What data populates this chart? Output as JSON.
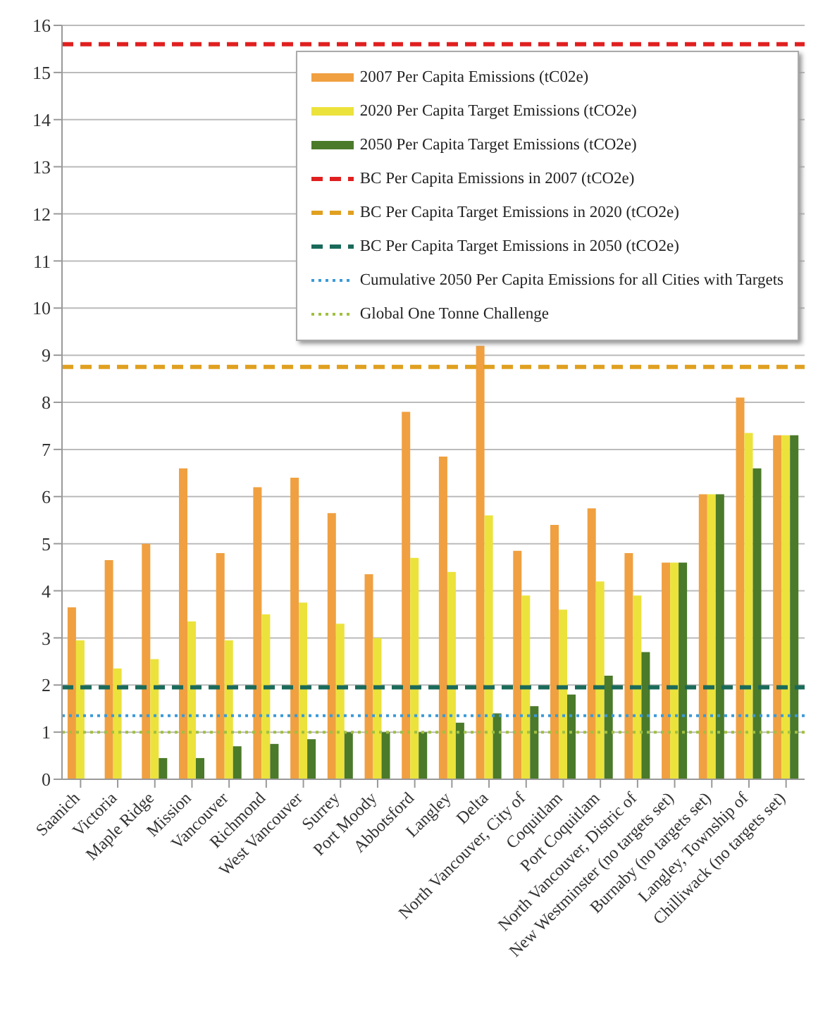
{
  "chart_data": {
    "type": "bar",
    "categories": [
      "Saanich",
      "Victoria",
      "Maple Ridge",
      "Mission",
      "Vancouver",
      "Richmond",
      "West Vancouver",
      "Surrey",
      "Port Moody",
      "Abbotsford",
      "Langley",
      "Delta",
      "North Vancouver, City of",
      "Coquitlam",
      "Port Coquitlam",
      "North Vancouver, Distric of",
      "New Westminster (no targets set)",
      "Burnaby (no targets set)",
      "Langley, Township of",
      "Chilliwack (no targets set)"
    ],
    "series": [
      {
        "name": "2007 Per Capita Emissions (tC02e)",
        "color": "#f0a040",
        "values": [
          3.65,
          4.65,
          5.0,
          6.6,
          4.8,
          6.2,
          6.4,
          5.65,
          4.35,
          7.8,
          6.85,
          9.2,
          4.85,
          5.4,
          5.75,
          4.8,
          4.6,
          6.05,
          8.1,
          7.3
        ]
      },
      {
        "name": "2020 Per Capita Target Emissions (tCO2e)",
        "color": "#ece23c",
        "values": [
          2.95,
          2.35,
          2.55,
          3.35,
          2.95,
          3.5,
          3.75,
          3.3,
          3.0,
          4.7,
          4.4,
          5.6,
          3.9,
          3.6,
          4.2,
          3.9,
          4.6,
          6.05,
          7.35,
          7.3
        ]
      },
      {
        "name": "2050 Per Capita Target Emissions (tCO2e)",
        "color": "#4a7a2a",
        "values": [
          null,
          null,
          0.45,
          0.45,
          0.7,
          0.75,
          0.85,
          1.0,
          1.0,
          1.0,
          1.2,
          1.4,
          1.55,
          1.8,
          2.2,
          2.7,
          4.6,
          6.05,
          6.6,
          7.3
        ]
      }
    ],
    "ref_lines": [
      {
        "axis": "y",
        "value": 15.6,
        "label": "BC Per Capita Emissions in 2007 (tCO2e)",
        "color": "#e02020",
        "line_style": "dashed"
      },
      {
        "axis": "y",
        "value": 8.75,
        "label": "BC Per Capita Target Emissions in 2020 (tCO2e)",
        "color": "#e0a020",
        "line_style": "dashed"
      },
      {
        "axis": "y",
        "value": 1.95,
        "label": "BC Per Capita Target Emissions in 2050 (tCO2e)",
        "color": "#1a6a5a",
        "line_style": "dashed"
      },
      {
        "axis": "y",
        "value": 1.35,
        "label": "Cumulative 2050 Per Capita Emissions for all Cities with Targets",
        "color": "#3a9ad9",
        "line_style": "dotted"
      },
      {
        "axis": "y",
        "value": 1.0,
        "label": "Global One Tonne Challenge",
        "color": "#a0c040",
        "line_style": "dotted"
      }
    ],
    "ylim": [
      0,
      16
    ],
    "yticks": [
      0,
      1,
      2,
      3,
      4,
      5,
      6,
      7,
      8,
      9,
      10,
      11,
      12,
      13,
      14,
      15,
      16
    ],
    "grid": "y",
    "legend": "top right"
  }
}
